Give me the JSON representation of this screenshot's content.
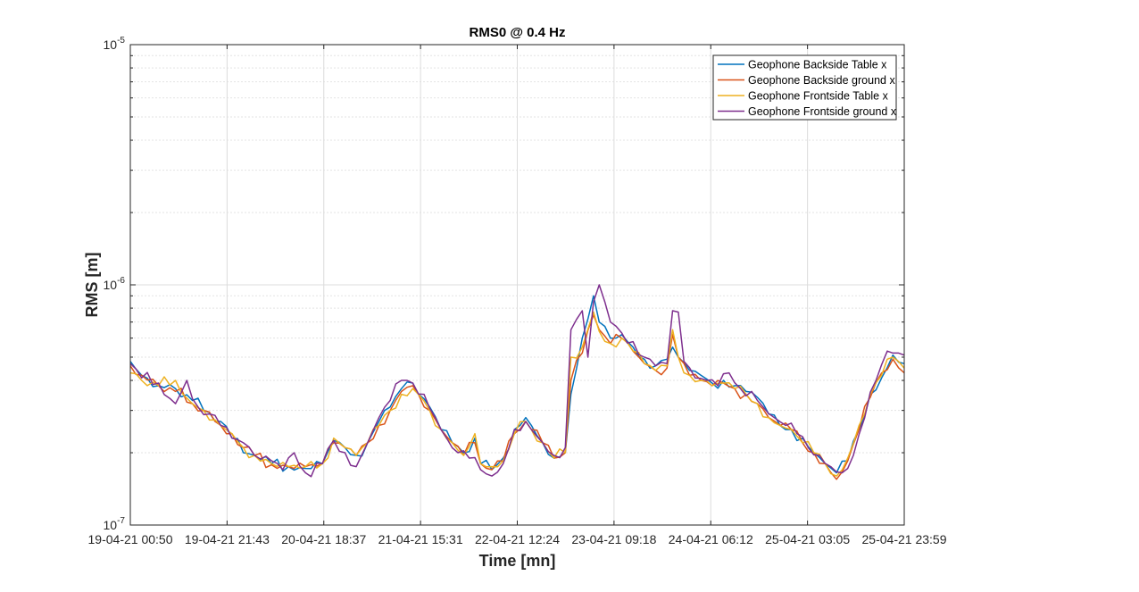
{
  "chart_data": {
    "type": "line",
    "title": "RMS0 @ 0.4 Hz",
    "xlabel": "Time [mn]",
    "ylabel": "RMS [m]",
    "yscale": "log",
    "ylim": [
      1e-07,
      1e-05
    ],
    "ytick_labels": [
      {
        "value": 1e-07,
        "base": "10",
        "exp": "-7"
      },
      {
        "value": 1e-06,
        "base": "10",
        "exp": "-6"
      },
      {
        "value": 1e-05,
        "base": "10",
        "exp": "-5"
      }
    ],
    "xtick_labels": [
      "19-04-21 00:50",
      "19-04-21 21:43",
      "20-04-21 18:37",
      "21-04-21 15:31",
      "22-04-21 12:24",
      "23-04-21 09:18",
      "24-04-21 06:12",
      "25-04-21 03:05",
      "25-04-21 23:59"
    ],
    "grid": true,
    "minor_grid": true,
    "legend_position": "top-right",
    "colors": [
      "#0072bd",
      "#d95319",
      "#edb120",
      "#7e2f8e"
    ],
    "series": [
      {
        "name": "Geophone Backside Table x",
        "color": "#0072bd",
        "anchors": [
          [
            0,
            4.8e-07
          ],
          [
            2,
            4.2e-07
          ],
          [
            5,
            3.8e-07
          ],
          [
            8,
            3.7e-07
          ],
          [
            11,
            3.3e-07
          ],
          [
            13,
            3e-07
          ],
          [
            16,
            2.7e-07
          ],
          [
            18,
            2.3e-07
          ],
          [
            20,
            2e-07
          ],
          [
            22,
            1.95e-07
          ],
          [
            25,
            1.8e-07
          ],
          [
            28,
            1.75e-07
          ],
          [
            31,
            1.72e-07
          ],
          [
            34,
            1.8e-07
          ],
          [
            36,
            2.25e-07
          ],
          [
            38,
            2.1e-07
          ],
          [
            40,
            1.95e-07
          ],
          [
            42,
            2.2e-07
          ],
          [
            44,
            2.7e-07
          ],
          [
            46,
            3.1e-07
          ],
          [
            48,
            3.7e-07
          ],
          [
            50,
            3.9e-07
          ],
          [
            51,
            3.5e-07
          ],
          [
            53,
            3.1e-07
          ],
          [
            55,
            2.5e-07
          ],
          [
            57,
            2.2e-07
          ],
          [
            59,
            2e-07
          ],
          [
            61,
            2.3e-07
          ],
          [
            62,
            1.8e-07
          ],
          [
            64,
            1.7e-07
          ],
          [
            66,
            1.9e-07
          ],
          [
            68,
            2.5e-07
          ],
          [
            70,
            2.8e-07
          ],
          [
            71,
            2.6e-07
          ],
          [
            73,
            2.2e-07
          ],
          [
            75,
            1.9e-07
          ],
          [
            77,
            2e-07
          ],
          [
            78,
            3.5e-07
          ],
          [
            80,
            6e-07
          ],
          [
            82,
            9e-07
          ],
          [
            83,
            7e-07
          ],
          [
            85,
            6e-07
          ],
          [
            87,
            6.2e-07
          ],
          [
            89,
            5.5e-07
          ],
          [
            91,
            4.9e-07
          ],
          [
            93,
            4.6e-07
          ],
          [
            95,
            4.9e-07
          ],
          [
            96,
            5.5e-07
          ],
          [
            97,
            5e-07
          ],
          [
            99,
            4.4e-07
          ],
          [
            101,
            4.2e-07
          ],
          [
            103,
            3.9e-07
          ],
          [
            105,
            4e-07
          ],
          [
            107,
            3.8e-07
          ],
          [
            109,
            3.6e-07
          ],
          [
            111,
            3.4e-07
          ],
          [
            113,
            2.9e-07
          ],
          [
            115,
            2.6e-07
          ],
          [
            117,
            2.5e-07
          ],
          [
            119,
            2.3e-07
          ],
          [
            121,
            2e-07
          ],
          [
            123,
            1.8e-07
          ],
          [
            125,
            1.65e-07
          ],
          [
            127,
            1.85e-07
          ],
          [
            129,
            2.5e-07
          ],
          [
            131,
            3.5e-07
          ],
          [
            133,
            4.1e-07
          ],
          [
            135,
            5.1e-07
          ],
          [
            137,
            4.7e-07
          ]
        ]
      },
      {
        "name": "Geophone Backside ground x",
        "color": "#d95319",
        "anchors": [
          [
            0,
            4.6e-07
          ],
          [
            2,
            4.2e-07
          ],
          [
            5,
            3.8e-07
          ],
          [
            8,
            3.6e-07
          ],
          [
            11,
            3.2e-07
          ],
          [
            13,
            3e-07
          ],
          [
            16,
            2.6e-07
          ],
          [
            18,
            2.4e-07
          ],
          [
            20,
            2.1e-07
          ],
          [
            22,
            1.95e-07
          ],
          [
            25,
            1.78e-07
          ],
          [
            28,
            1.75e-07
          ],
          [
            31,
            1.75e-07
          ],
          [
            34,
            1.8e-07
          ],
          [
            36,
            2.2e-07
          ],
          [
            38,
            2.1e-07
          ],
          [
            40,
            1.95e-07
          ],
          [
            42,
            2.2e-07
          ],
          [
            44,
            2.6e-07
          ],
          [
            46,
            3e-07
          ],
          [
            48,
            3.6e-07
          ],
          [
            50,
            3.8e-07
          ],
          [
            51,
            3.5e-07
          ],
          [
            53,
            3e-07
          ],
          [
            55,
            2.5e-07
          ],
          [
            57,
            2.2e-07
          ],
          [
            59,
            1.95e-07
          ],
          [
            61,
            2.2e-07
          ],
          [
            62,
            1.8e-07
          ],
          [
            64,
            1.7e-07
          ],
          [
            66,
            1.85e-07
          ],
          [
            68,
            2.4e-07
          ],
          [
            70,
            2.7e-07
          ],
          [
            71,
            2.5e-07
          ],
          [
            73,
            2.2e-07
          ],
          [
            75,
            1.9e-07
          ],
          [
            77,
            2e-07
          ],
          [
            78,
            4e-07
          ],
          [
            80,
            5.2e-07
          ],
          [
            82,
            7.5e-07
          ],
          [
            83,
            6.5e-07
          ],
          [
            85,
            5.7e-07
          ],
          [
            87,
            6e-07
          ],
          [
            89,
            5.3e-07
          ],
          [
            91,
            4.7e-07
          ],
          [
            93,
            4.4e-07
          ],
          [
            95,
            4.5e-07
          ],
          [
            96,
            6.2e-07
          ],
          [
            97,
            5e-07
          ],
          [
            99,
            4.2e-07
          ],
          [
            101,
            4e-07
          ],
          [
            103,
            3.8e-07
          ],
          [
            105,
            3.9e-07
          ],
          [
            107,
            3.7e-07
          ],
          [
            109,
            3.5e-07
          ],
          [
            111,
            3.2e-07
          ],
          [
            113,
            2.8e-07
          ],
          [
            115,
            2.6e-07
          ],
          [
            117,
            2.5e-07
          ],
          [
            119,
            2.2e-07
          ],
          [
            121,
            2e-07
          ],
          [
            123,
            1.8e-07
          ],
          [
            125,
            1.55e-07
          ],
          [
            127,
            1.85e-07
          ],
          [
            129,
            2.5e-07
          ],
          [
            131,
            3.4e-07
          ],
          [
            133,
            4.3e-07
          ],
          [
            135,
            4.9e-07
          ],
          [
            137,
            4.3e-07
          ]
        ]
      },
      {
        "name": "Geophone Frontside Table x",
        "color": "#edb120",
        "anchors": [
          [
            0,
            4.3e-07
          ],
          [
            2,
            4e-07
          ],
          [
            5,
            3.8e-07
          ],
          [
            8,
            4e-07
          ],
          [
            11,
            3.2e-07
          ],
          [
            13,
            3e-07
          ],
          [
            16,
            2.6e-07
          ],
          [
            18,
            2.4e-07
          ],
          [
            20,
            2.1e-07
          ],
          [
            22,
            1.95e-07
          ],
          [
            25,
            1.8e-07
          ],
          [
            28,
            1.75e-07
          ],
          [
            31,
            1.75e-07
          ],
          [
            34,
            1.8e-07
          ],
          [
            36,
            2.3e-07
          ],
          [
            38,
            2.1e-07
          ],
          [
            40,
            1.95e-07
          ],
          [
            42,
            2.2e-07
          ],
          [
            44,
            2.6e-07
          ],
          [
            46,
            3e-07
          ],
          [
            48,
            3.5e-07
          ],
          [
            50,
            3.7e-07
          ],
          [
            51,
            3.5e-07
          ],
          [
            53,
            3e-07
          ],
          [
            55,
            2.5e-07
          ],
          [
            57,
            2.2e-07
          ],
          [
            59,
            1.95e-07
          ],
          [
            61,
            2.4e-07
          ],
          [
            62,
            1.8e-07
          ],
          [
            64,
            1.75e-07
          ],
          [
            66,
            1.85e-07
          ],
          [
            68,
            2.4e-07
          ],
          [
            70,
            2.7e-07
          ],
          [
            71,
            2.5e-07
          ],
          [
            73,
            2.2e-07
          ],
          [
            75,
            1.9e-07
          ],
          [
            77,
            2e-07
          ],
          [
            78,
            5e-07
          ],
          [
            80,
            5.5e-07
          ],
          [
            82,
            7.7e-07
          ],
          [
            83,
            6.4e-07
          ],
          [
            85,
            5.7e-07
          ],
          [
            87,
            6e-07
          ],
          [
            89,
            5.3e-07
          ],
          [
            91,
            4.7e-07
          ],
          [
            93,
            4.4e-07
          ],
          [
            95,
            4.6e-07
          ],
          [
            96,
            6.5e-07
          ],
          [
            97,
            5e-07
          ],
          [
            99,
            4.2e-07
          ],
          [
            101,
            4e-07
          ],
          [
            103,
            3.8e-07
          ],
          [
            105,
            3.9e-07
          ],
          [
            107,
            3.7e-07
          ],
          [
            109,
            3.5e-07
          ],
          [
            111,
            3.2e-07
          ],
          [
            113,
            2.8e-07
          ],
          [
            115,
            2.6e-07
          ],
          [
            117,
            2.5e-07
          ],
          [
            119,
            2.2e-07
          ],
          [
            121,
            2e-07
          ],
          [
            123,
            1.8e-07
          ],
          [
            125,
            1.6e-07
          ],
          [
            127,
            1.9e-07
          ],
          [
            129,
            2.6e-07
          ],
          [
            131,
            3.5e-07
          ],
          [
            133,
            4.2e-07
          ],
          [
            135,
            5e-07
          ],
          [
            137,
            4.5e-07
          ]
        ]
      },
      {
        "name": "Geophone Frontside ground x",
        "color": "#7e2f8e",
        "anchors": [
          [
            0,
            4.7e-07
          ],
          [
            2,
            4.1e-07
          ],
          [
            5,
            3.9e-07
          ],
          [
            8,
            3.2e-07
          ],
          [
            10,
            4e-07
          ],
          [
            12,
            3.1e-07
          ],
          [
            14,
            2.9e-07
          ],
          [
            16,
            2.6e-07
          ],
          [
            18,
            2.3e-07
          ],
          [
            20,
            2.2e-07
          ],
          [
            22,
            1.95e-07
          ],
          [
            25,
            1.85e-07
          ],
          [
            27,
            1.7e-07
          ],
          [
            29,
            2e-07
          ],
          [
            31,
            1.65e-07
          ],
          [
            34,
            1.8e-07
          ],
          [
            36,
            2.25e-07
          ],
          [
            38,
            2e-07
          ],
          [
            40,
            1.75e-07
          ],
          [
            42,
            2.2e-07
          ],
          [
            44,
            2.8e-07
          ],
          [
            46,
            3.3e-07
          ],
          [
            48,
            4e-07
          ],
          [
            50,
            3.9e-07
          ],
          [
            52,
            3.5e-07
          ],
          [
            54,
            2.8e-07
          ],
          [
            56,
            2.3e-07
          ],
          [
            58,
            2e-07
          ],
          [
            60,
            1.9e-07
          ],
          [
            62,
            1.7e-07
          ],
          [
            64,
            1.6e-07
          ],
          [
            66,
            1.8e-07
          ],
          [
            68,
            2.5e-07
          ],
          [
            70,
            2.7e-07
          ],
          [
            71,
            2.5e-07
          ],
          [
            73,
            2.2e-07
          ],
          [
            75,
            1.95e-07
          ],
          [
            77,
            2.1e-07
          ],
          [
            78,
            6.5e-07
          ],
          [
            80,
            7.8e-07
          ],
          [
            81,
            5e-07
          ],
          [
            82,
            8.5e-07
          ],
          [
            83,
            1e-06
          ],
          [
            85,
            7e-07
          ],
          [
            87,
            6.3e-07
          ],
          [
            89,
            5.8e-07
          ],
          [
            91,
            5e-07
          ],
          [
            93,
            4.6e-07
          ],
          [
            95,
            4.7e-07
          ],
          [
            96,
            7.8e-07
          ],
          [
            97,
            7.7e-07
          ],
          [
            98,
            4.8e-07
          ],
          [
            100,
            4.1e-07
          ],
          [
            102,
            4e-07
          ],
          [
            104,
            3.8e-07
          ],
          [
            106,
            4.3e-07
          ],
          [
            108,
            3.7e-07
          ],
          [
            110,
            3.6e-07
          ],
          [
            112,
            3.1e-07
          ],
          [
            114,
            2.8e-07
          ],
          [
            116,
            2.6e-07
          ],
          [
            118,
            2.4e-07
          ],
          [
            120,
            2.1e-07
          ],
          [
            122,
            1.95e-07
          ],
          [
            124,
            1.75e-07
          ],
          [
            126,
            1.65e-07
          ],
          [
            128,
            1.95e-07
          ],
          [
            130,
            2.8e-07
          ],
          [
            132,
            4e-07
          ],
          [
            134,
            5.3e-07
          ],
          [
            136,
            5.2e-07
          ],
          [
            137,
            5.1e-07
          ]
        ]
      }
    ]
  }
}
